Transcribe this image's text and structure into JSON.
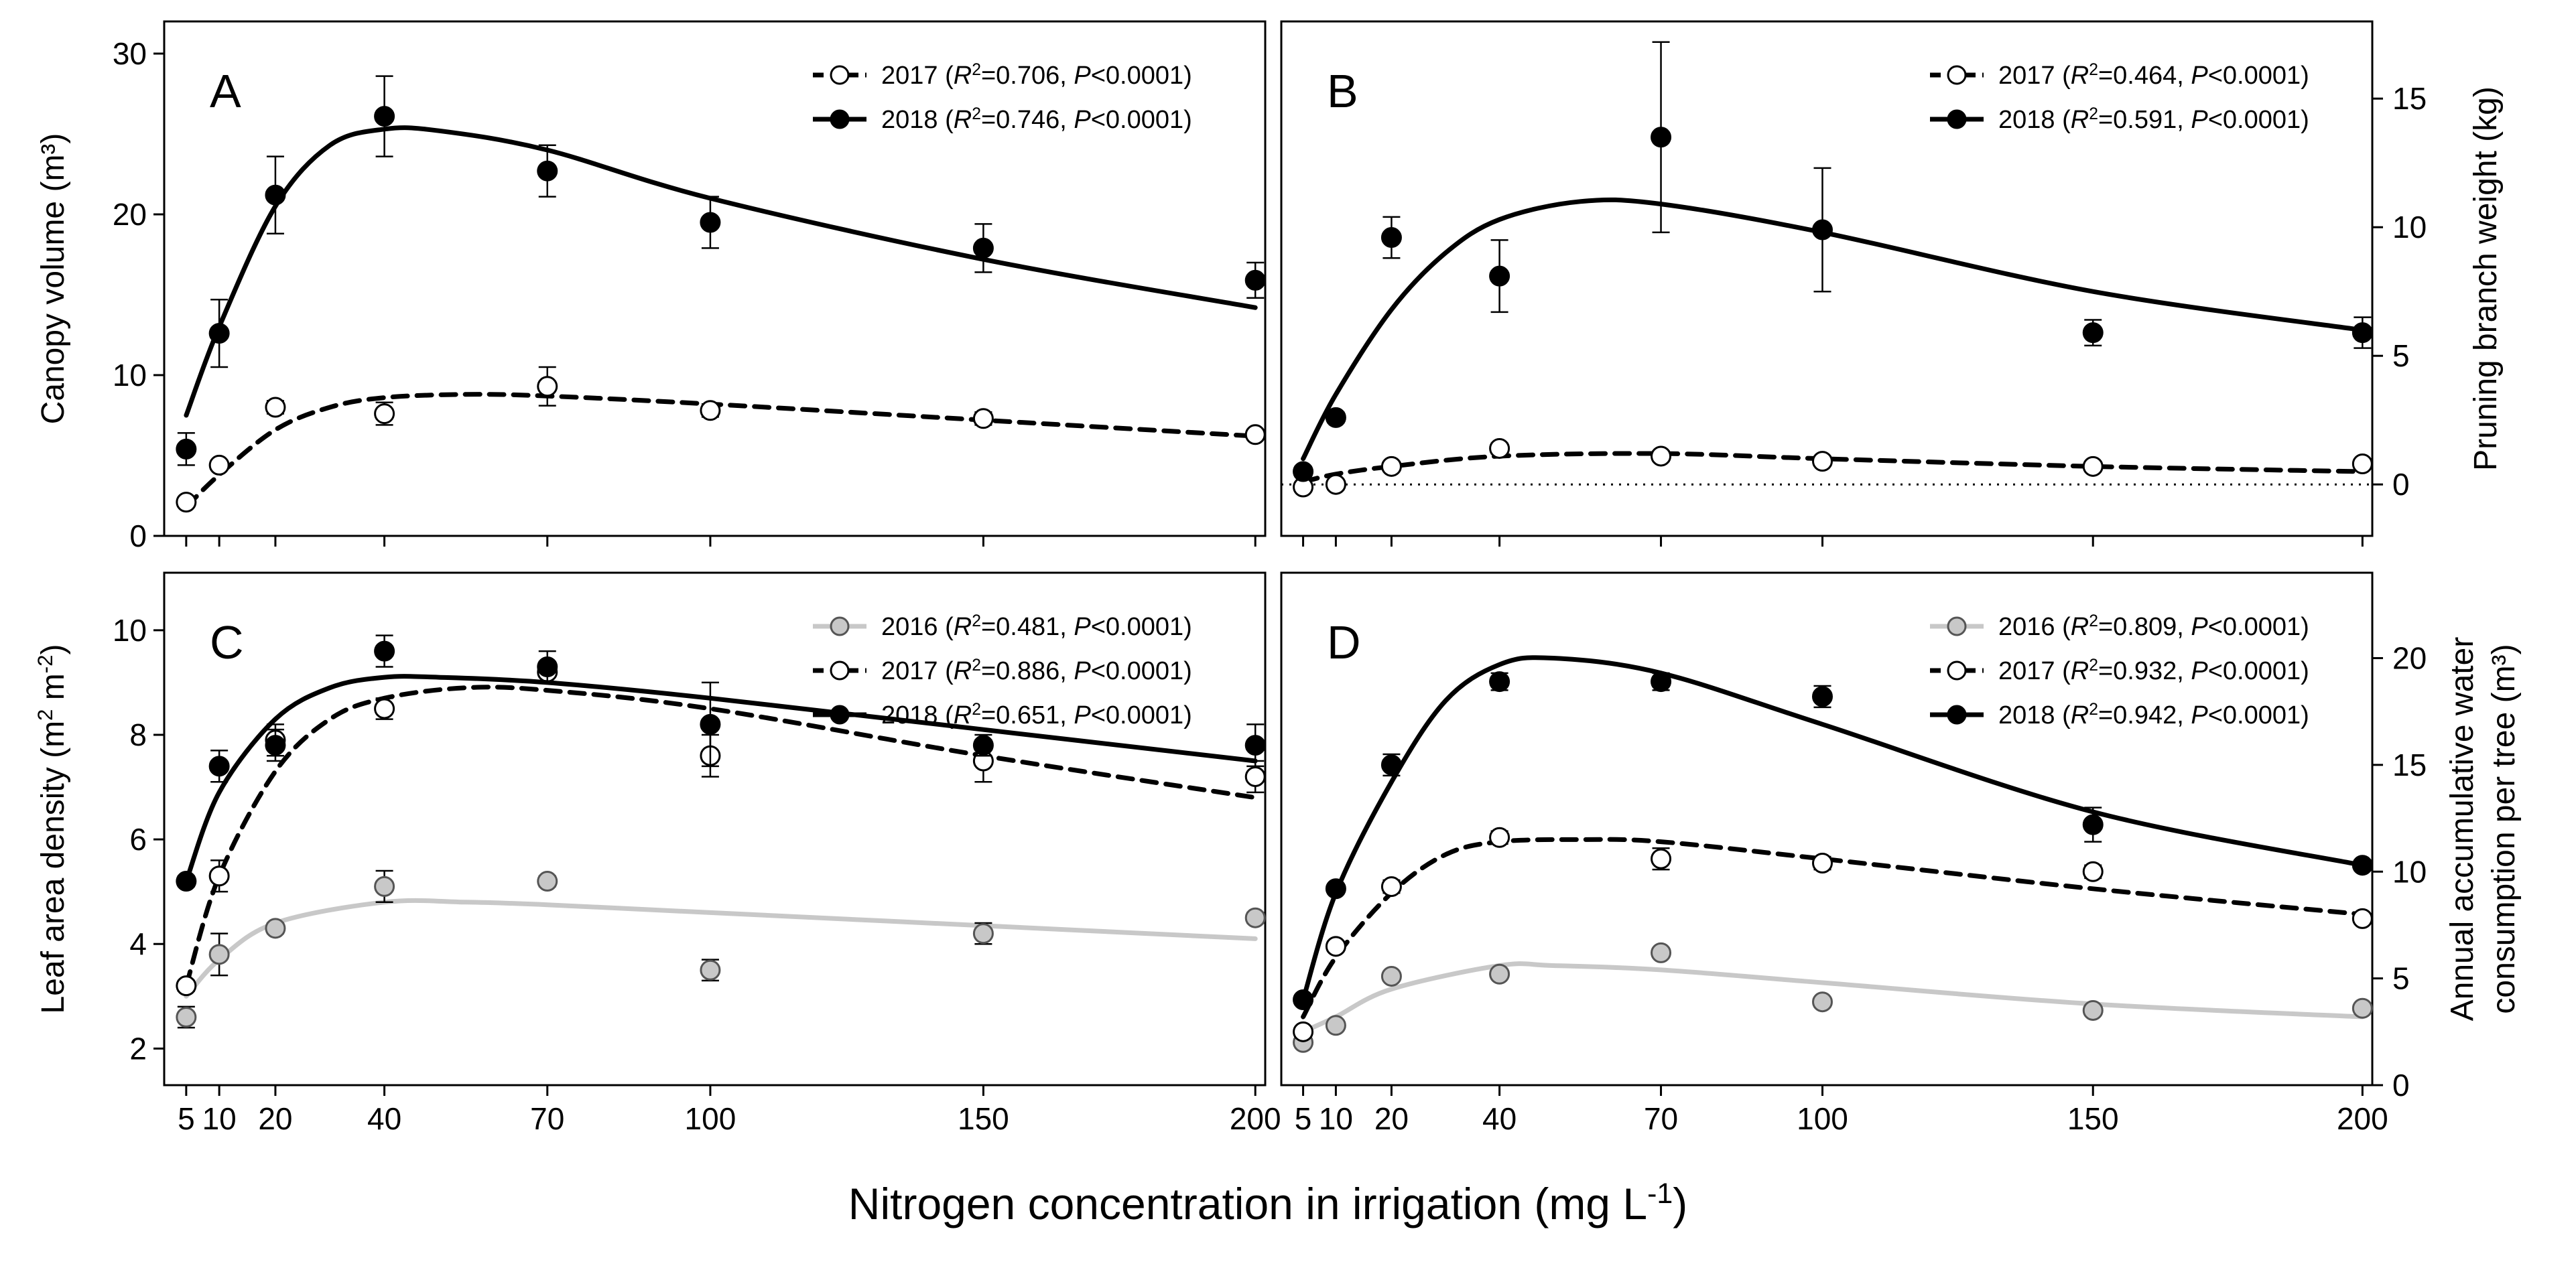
{
  "chart_data": [
    {
      "panel": "A",
      "type": "scatter",
      "ylabel": "Canopy volume (m³)",
      "ylim": [
        0,
        32
      ],
      "yticks": [
        0,
        10,
        20,
        30
      ],
      "xlim": [
        0,
        210
      ],
      "series": [
        {
          "name": "2017",
          "marker": "open",
          "line": "dashed",
          "color": "#000000",
          "legend": "2017 (R²=0.706, P<0.0001)",
          "r2": "0.706",
          "p": "P<0.0001",
          "x": [
            5,
            10,
            20,
            40,
            70,
            100,
            150,
            200
          ],
          "y": [
            2.1,
            4.4,
            8.0,
            7.6,
            9.3,
            7.8,
            7.3,
            6.3
          ],
          "err": [
            0.3,
            0.3,
            0.4,
            0.7,
            1.2,
            0.4,
            0.4,
            0.3
          ],
          "curve": [
            [
              5,
              1.8
            ],
            [
              10,
              3.8
            ],
            [
              20,
              6.6
            ],
            [
              30,
              8.0
            ],
            [
              40,
              8.6
            ],
            [
              55,
              8.8
            ],
            [
              70,
              8.7
            ],
            [
              100,
              8.2
            ],
            [
              150,
              7.2
            ],
            [
              200,
              6.2
            ]
          ]
        },
        {
          "name": "2018",
          "marker": "filled",
          "line": "solid",
          "color": "#000000",
          "legend": "2018 (R²=0.746, P<0.0001)",
          "r2": "0.746",
          "p": "P<0.0001",
          "x": [
            5,
            10,
            20,
            40,
            70,
            100,
            150,
            200
          ],
          "y": [
            5.4,
            12.6,
            21.2,
            26.1,
            22.7,
            19.5,
            17.9,
            15.9
          ],
          "err": [
            1.0,
            2.1,
            2.4,
            2.5,
            1.6,
            1.6,
            1.5,
            1.1
          ],
          "curve": [
            [
              5,
              7.5
            ],
            [
              10,
              13.0
            ],
            [
              20,
              20.5
            ],
            [
              30,
              24.3
            ],
            [
              40,
              25.3
            ],
            [
              50,
              25.2
            ],
            [
              70,
              24.0
            ],
            [
              100,
              21.0
            ],
            [
              150,
              17.2
            ],
            [
              200,
              14.2
            ]
          ]
        }
      ]
    },
    {
      "panel": "B",
      "type": "scatter",
      "ylabel": "Pruning branch weight (kg)",
      "ylim": [
        -2,
        18
      ],
      "yticks": [
        0,
        5,
        10,
        15
      ],
      "xlim": [
        0,
        210
      ],
      "zero_line": true,
      "series": [
        {
          "name": "2017",
          "marker": "open",
          "line": "dashed",
          "color": "#000000",
          "legend": "2017 (R²=0.464, P<0.0001)",
          "r2": "0.464",
          "p": "P<0.0001",
          "x": [
            5,
            10,
            20,
            40,
            70,
            100,
            150,
            200
          ],
          "y": [
            -0.1,
            0.0,
            0.7,
            1.4,
            1.1,
            0.9,
            0.7,
            0.8
          ],
          "err": [
            0.1,
            0.1,
            0.1,
            0.2,
            0.2,
            0.1,
            0.1,
            0.1
          ],
          "curve": [
            [
              5,
              0.1
            ],
            [
              10,
              0.4
            ],
            [
              20,
              0.7
            ],
            [
              40,
              1.1
            ],
            [
              70,
              1.2
            ],
            [
              100,
              1.0
            ],
            [
              150,
              0.7
            ],
            [
              200,
              0.5
            ]
          ]
        },
        {
          "name": "2018",
          "marker": "filled",
          "line": "solid",
          "color": "#000000",
          "legend": "2018 (R²=0.591, P<0.0001)",
          "r2": "0.591",
          "p": "P<0.0001",
          "x": [
            5,
            10,
            20,
            40,
            70,
            100,
            150,
            200
          ],
          "y": [
            0.5,
            2.6,
            9.6,
            8.1,
            13.5,
            9.9,
            5.9,
            5.9
          ],
          "err": [
            0.2,
            0.2,
            0.8,
            1.4,
            3.7,
            2.4,
            0.5,
            0.6
          ],
          "curve": [
            [
              5,
              1.0
            ],
            [
              10,
              3.5
            ],
            [
              20,
              6.8
            ],
            [
              30,
              9.0
            ],
            [
              40,
              10.3
            ],
            [
              55,
              11.0
            ],
            [
              70,
              10.9
            ],
            [
              100,
              9.8
            ],
            [
              150,
              7.5
            ],
            [
              200,
              6.0
            ]
          ]
        }
      ]
    },
    {
      "panel": "C",
      "type": "scatter",
      "ylabel": "Leaf area density (m² m⁻²)",
      "ylim": [
        1.3,
        11.1
      ],
      "yticks": [
        2,
        4,
        6,
        8,
        10
      ],
      "xlim": [
        0,
        210
      ],
      "series": [
        {
          "name": "2016",
          "marker": "grey",
          "line": "solid",
          "color": "#c8c8c8",
          "legend": "2016 (R²=0.481, P<0.0001)",
          "r2": "0.481",
          "p": "P<0.0001",
          "x": [
            5,
            10,
            20,
            40,
            70,
            100,
            150,
            200
          ],
          "y": [
            2.6,
            3.8,
            4.3,
            5.1,
            5.2,
            3.5,
            4.2,
            4.5
          ],
          "err": [
            0.2,
            0.4,
            0.1,
            0.3,
            0.1,
            0.2,
            0.2,
            0.1
          ],
          "curve": [
            [
              5,
              3.0
            ],
            [
              10,
              3.7
            ],
            [
              20,
              4.4
            ],
            [
              40,
              4.8
            ],
            [
              55,
              4.8
            ],
            [
              70,
              4.75
            ],
            [
              100,
              4.6
            ],
            [
              150,
              4.35
            ],
            [
              200,
              4.1
            ]
          ]
        },
        {
          "name": "2017",
          "marker": "open",
          "line": "dashed",
          "color": "#000000",
          "legend": "2017 (R²=0.886, P<0.0001)",
          "r2": "0.886",
          "p": "P<0.0001",
          "x": [
            5,
            10,
            20,
            40,
            70,
            100,
            150,
            200
          ],
          "y": [
            3.2,
            5.3,
            7.9,
            8.5,
            9.2,
            7.6,
            7.5,
            7.2
          ],
          "err": [
            0.1,
            0.3,
            0.3,
            0.2,
            0.2,
            0.4,
            0.4,
            0.3
          ],
          "curve": [
            [
              5,
              3.2
            ],
            [
              10,
              5.3
            ],
            [
              20,
              7.3
            ],
            [
              30,
              8.3
            ],
            [
              40,
              8.7
            ],
            [
              55,
              8.9
            ],
            [
              70,
              8.85
            ],
            [
              100,
              8.5
            ],
            [
              150,
              7.6
            ],
            [
              200,
              6.8
            ]
          ]
        },
        {
          "name": "2018",
          "marker": "filled",
          "line": "solid",
          "color": "#000000",
          "legend": "2018 (R²=0.651, P<0.0001)",
          "r2": "0.651",
          "p": "P<0.0001",
          "x": [
            5,
            10,
            20,
            40,
            70,
            100,
            150,
            200
          ],
          "y": [
            5.2,
            7.4,
            7.8,
            9.6,
            9.3,
            8.2,
            7.8,
            7.8
          ],
          "err": [
            0.1,
            0.3,
            0.3,
            0.3,
            0.3,
            0.8,
            0.2,
            0.4
          ],
          "curve": [
            [
              5,
              5.2
            ],
            [
              10,
              6.9
            ],
            [
              20,
              8.3
            ],
            [
              30,
              8.9
            ],
            [
              40,
              9.1
            ],
            [
              50,
              9.1
            ],
            [
              70,
              9.0
            ],
            [
              100,
              8.7
            ],
            [
              150,
              8.1
            ],
            [
              200,
              7.5
            ]
          ]
        }
      ]
    },
    {
      "panel": "D",
      "type": "scatter",
      "ylabel": "Annual accumulative water consumption per tree (m³)",
      "ylabel_lines": [
        "Annual accumulative water",
        "consumption per tree (m³)"
      ],
      "ylim": [
        0,
        24
      ],
      "yticks": [
        0,
        5,
        10,
        15,
        20
      ],
      "xlim": [
        0,
        210
      ],
      "series": [
        {
          "name": "2016",
          "marker": "grey",
          "line": "solid",
          "color": "#c8c8c8",
          "legend": "2016 (R²=0.809, P<0.0001)",
          "r2": "0.809",
          "p": "P<0.0001",
          "x": [
            5,
            10,
            20,
            40,
            70,
            100,
            150,
            200
          ],
          "y": [
            2.0,
            2.8,
            5.1,
            5.2,
            6.2,
            3.9,
            3.5,
            3.6
          ],
          "err": [
            0.1,
            0.2,
            0.2,
            0.2,
            0.2,
            0.1,
            0.2,
            0.1
          ],
          "curve": [
            [
              5,
              2.5
            ],
            [
              10,
              3.2
            ],
            [
              20,
              4.5
            ],
            [
              40,
              5.6
            ],
            [
              50,
              5.6
            ],
            [
              70,
              5.4
            ],
            [
              100,
              4.8
            ],
            [
              150,
              3.8
            ],
            [
              200,
              3.2
            ]
          ]
        },
        {
          "name": "2017",
          "marker": "open",
          "line": "dashed",
          "color": "#000000",
          "legend": "2017 (R²=0.932, P<0.0001)",
          "r2": "0.932",
          "p": "P<0.0001",
          "x": [
            5,
            10,
            20,
            40,
            70,
            100,
            150,
            200
          ],
          "y": [
            2.5,
            6.5,
            9.3,
            11.6,
            10.6,
            10.4,
            10.0,
            7.8
          ],
          "err": [
            0.1,
            0.2,
            0.3,
            0.3,
            0.5,
            0.3,
            0.3,
            0.2
          ],
          "curve": [
            [
              5,
              3.2
            ],
            [
              10,
              6.0
            ],
            [
              20,
              9.0
            ],
            [
              30,
              10.8
            ],
            [
              40,
              11.4
            ],
            [
              55,
              11.5
            ],
            [
              70,
              11.4
            ],
            [
              100,
              10.6
            ],
            [
              150,
              9.2
            ],
            [
              200,
              8.0
            ]
          ]
        },
        {
          "name": "2018",
          "marker": "filled",
          "line": "solid",
          "color": "#000000",
          "legend": "2018 (R²=0.942, P<0.0001)",
          "r2": "0.942",
          "p": "P<0.0001",
          "x": [
            5,
            10,
            20,
            40,
            70,
            100,
            150,
            200
          ],
          "y": [
            4.0,
            9.2,
            15.0,
            18.9,
            18.9,
            18.2,
            12.2,
            10.3
          ],
          "err": [
            0.2,
            0.2,
            0.5,
            0.4,
            0.4,
            0.5,
            0.8,
            0.2
          ],
          "curve": [
            [
              5,
              4.0
            ],
            [
              10,
              9.0
            ],
            [
              20,
              14.2
            ],
            [
              30,
              18.0
            ],
            [
              40,
              19.7
            ],
            [
              50,
              20.0
            ],
            [
              70,
              19.3
            ],
            [
              100,
              16.9
            ],
            [
              150,
              12.8
            ],
            [
              200,
              10.3
            ]
          ]
        }
      ]
    }
  ],
  "xticks": [
    5,
    10,
    20,
    40,
    70,
    100,
    150,
    200
  ],
  "xlabel": "Nitrogen concentration in irrigation (mg L⁻¹)"
}
